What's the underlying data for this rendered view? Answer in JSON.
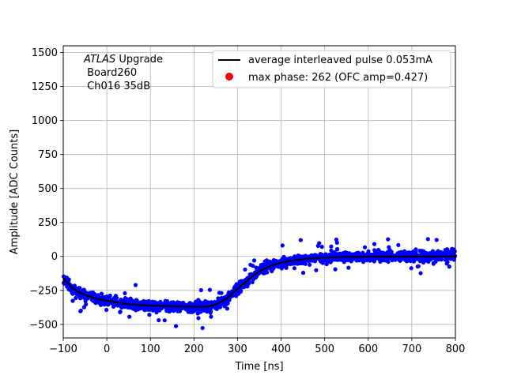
{
  "chart_data": {
    "type": "scatter",
    "xlabel": "Time [ns]",
    "ylabel": "Amplitude [ADC Counts]",
    "xlim": [
      -100,
      800
    ],
    "ylim": [
      -600,
      1550
    ],
    "xticks": [
      -100,
      0,
      100,
      200,
      300,
      400,
      500,
      600,
      700,
      800
    ],
    "yticks": [
      -500,
      -250,
      0,
      250,
      500,
      750,
      1000,
      1250,
      1500
    ],
    "xtick_labels": [
      "−100",
      "0",
      "100",
      "200",
      "300",
      "400",
      "500",
      "600",
      "700",
      "800"
    ],
    "ytick_labels": [
      "−500",
      "−250",
      "0",
      "250",
      "500",
      "750",
      "1000",
      "1250",
      "1500"
    ],
    "grid": true,
    "legend_position": "top-right",
    "annotation": {
      "line1_italic": "ATLAS",
      "line1_rest": " Upgrade",
      "line2": " Board260",
      "line3": " Ch016 35dB"
    },
    "series": [
      {
        "name": "average interleaved pulse 0.053mA",
        "kind": "line",
        "color": "#000000",
        "x": [
          -100,
          -80,
          -60,
          -40,
          -20,
          0,
          25,
          50,
          100,
          150,
          200,
          230,
          250,
          275,
          300,
          325,
          350,
          375,
          400,
          450,
          500,
          550,
          600,
          650,
          700,
          750,
          800
        ],
        "y": [
          -160,
          -230,
          -270,
          -295,
          -315,
          -325,
          -340,
          -352,
          -362,
          -367,
          -370,
          -370,
          -355,
          -310,
          -240,
          -170,
          -110,
          -70,
          -45,
          -20,
          -8,
          -4,
          -2,
          -1,
          -1,
          -1,
          0
        ]
      },
      {
        "name": "max phase: 262 (OFC amp=0.427)",
        "kind": "marker",
        "color": "#ff0000"
      },
      {
        "name": "",
        "kind": "scatter-band",
        "color": "#0000ff",
        "note": "dense samples scattered about the average pulse, spread about ±60 ADC counts, with outliers up to ±130"
      }
    ]
  }
}
